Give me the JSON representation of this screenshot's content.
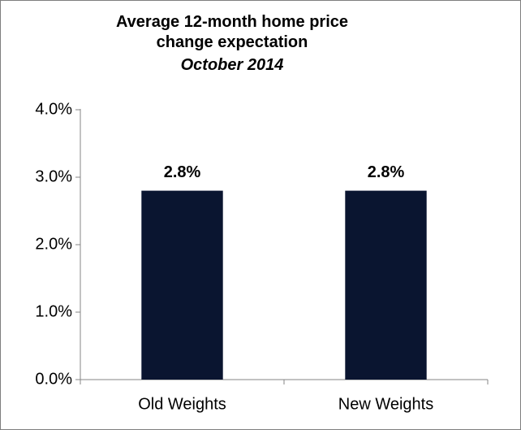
{
  "chart_data": {
    "type": "bar",
    "title": "Average 12-month home price change expectation",
    "subtitle": "October 2014",
    "categories": [
      "Old Weights",
      "New Weights"
    ],
    "values": [
      2.8,
      2.8
    ],
    "value_labels": [
      "2.8%",
      "2.8%"
    ],
    "color": "#0a1530",
    "ylim": [
      0,
      4
    ],
    "yticks": [
      {
        "value": 0,
        "label": "0.0%"
      },
      {
        "value": 1,
        "label": "1.0%"
      },
      {
        "value": 2,
        "label": "2.0%"
      },
      {
        "value": 3,
        "label": "3.0%"
      },
      {
        "value": 4,
        "label": "4.0%"
      }
    ],
    "grid": false
  }
}
